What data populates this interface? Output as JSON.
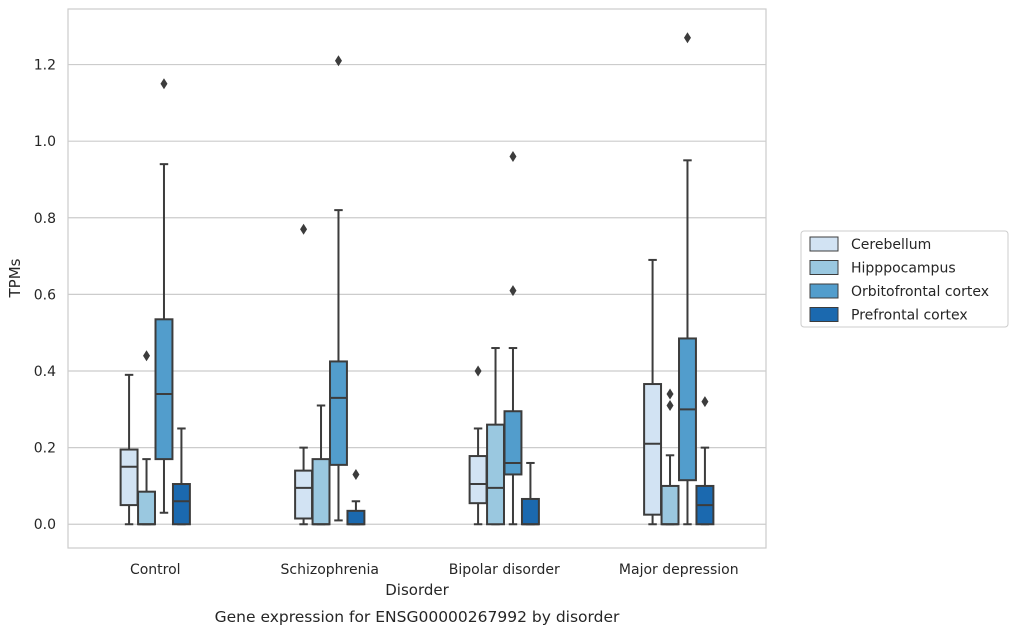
{
  "chart_data": {
    "type": "box",
    "caption": "Gene expression for ENSG00000267992 by disorder",
    "xlabel": "Disorder",
    "ylabel": "TPMs",
    "ylim": [
      -0.062,
      1.345
    ],
    "yticks": [
      0.0,
      0.2,
      0.4,
      0.6,
      0.8,
      1.0,
      1.2
    ],
    "ytick_labels": [
      "0.0",
      "0.2",
      "0.4",
      "0.6",
      "0.8",
      "1.0",
      "1.2"
    ],
    "grid": "horizontal",
    "legend_position": "right",
    "categories": [
      "Control",
      "Schizophrenia",
      "Bipolar disorder",
      "Major depression"
    ],
    "series": [
      {
        "name": "Cerebellum",
        "color": "#d2e3f3",
        "boxes": [
          {
            "whislo": 0.0,
            "q1": 0.05,
            "med": 0.15,
            "q3": 0.195,
            "whishi": 0.39,
            "fliers": []
          },
          {
            "whislo": 0.0,
            "q1": 0.015,
            "med": 0.095,
            "q3": 0.14,
            "whishi": 0.2,
            "fliers": [
              0.77
            ]
          },
          {
            "whislo": 0.0,
            "q1": 0.055,
            "med": 0.105,
            "q3": 0.178,
            "whishi": 0.25,
            "fliers": [
              0.4
            ]
          },
          {
            "whislo": 0.0,
            "q1": 0.025,
            "med": 0.21,
            "q3": 0.366,
            "whishi": 0.69,
            "fliers": []
          }
        ]
      },
      {
        "name": "Hipppocampus",
        "color": "#9ac8e0",
        "boxes": [
          {
            "whislo": 0.0,
            "q1": 0.0,
            "med": 0.0,
            "q3": 0.085,
            "whishi": 0.17,
            "fliers": [
              0.44
            ]
          },
          {
            "whislo": 0.0,
            "q1": 0.0,
            "med": 0.0,
            "q3": 0.17,
            "whishi": 0.31,
            "fliers": []
          },
          {
            "whislo": 0.0,
            "q1": 0.0,
            "med": 0.095,
            "q3": 0.26,
            "whishi": 0.46,
            "fliers": []
          },
          {
            "whislo": 0.0,
            "q1": 0.0,
            "med": 0.0,
            "q3": 0.1,
            "whishi": 0.18,
            "fliers": [
              0.31,
              0.34
            ]
          }
        ]
      },
      {
        "name": "Orbitofrontal cortex",
        "color": "#529dcc",
        "boxes": [
          {
            "whislo": 0.03,
            "q1": 0.17,
            "med": 0.34,
            "q3": 0.535,
            "whishi": 0.94,
            "fliers": [
              1.15
            ]
          },
          {
            "whislo": 0.01,
            "q1": 0.155,
            "med": 0.33,
            "q3": 0.425,
            "whishi": 0.82,
            "fliers": [
              1.21
            ]
          },
          {
            "whislo": 0.0,
            "q1": 0.13,
            "med": 0.16,
            "q3": 0.295,
            "whishi": 0.46,
            "fliers": [
              0.61,
              0.96
            ]
          },
          {
            "whislo": 0.0,
            "q1": 0.115,
            "med": 0.3,
            "q3": 0.485,
            "whishi": 0.95,
            "fliers": [
              1.27
            ]
          }
        ]
      },
      {
        "name": "Prefrontal cortex",
        "color": "#1b69af",
        "boxes": [
          {
            "whislo": 0.0,
            "q1": 0.0,
            "med": 0.06,
            "q3": 0.105,
            "whishi": 0.25,
            "fliers": []
          },
          {
            "whislo": 0.0,
            "q1": 0.0,
            "med": 0.0,
            "q3": 0.035,
            "whishi": 0.06,
            "fliers": [
              0.13
            ]
          },
          {
            "whislo": 0.0,
            "q1": 0.0,
            "med": 0.0,
            "q3": 0.066,
            "whishi": 0.16,
            "fliers": []
          },
          {
            "whislo": 0.0,
            "q1": 0.0,
            "med": 0.05,
            "q3": 0.1,
            "whishi": 0.2,
            "fliers": [
              0.32
            ]
          }
        ]
      }
    ]
  }
}
